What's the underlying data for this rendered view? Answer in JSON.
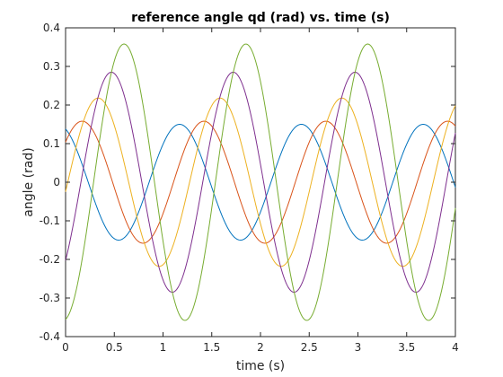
{
  "chart_data": {
    "type": "line",
    "title": "reference angle qd (rad) vs. time (s)",
    "xlabel": "time (s)",
    "ylabel": "angle (rad)",
    "xlim": [
      0,
      4
    ],
    "ylim": [
      -0.4,
      0.4
    ],
    "xticks": [
      "0",
      "0.5",
      "1",
      "1.5",
      "2",
      "2.5",
      "3",
      "3.5",
      "4"
    ],
    "yticks": [
      "-0.4",
      "-0.3",
      "-0.2",
      "-0.1",
      "0",
      "0.1",
      "0.2",
      "0.3",
      "0.4"
    ],
    "grid": false,
    "legend": "none",
    "period_s": 1.25,
    "series": [
      {
        "color": "#0072BD",
        "amplitude": 0.15,
        "peak_time": 1.17
      },
      {
        "color": "#D95319",
        "amplitude": 0.158,
        "peak_time": 0.17
      },
      {
        "color": "#EDB120",
        "amplitude": 0.218,
        "peak_time": 0.335
      },
      {
        "color": "#7E2F8E",
        "amplitude": 0.285,
        "peak_time": 0.47
      },
      {
        "color": "#77AC30",
        "amplitude": 0.358,
        "peak_time": 0.6
      }
    ]
  }
}
